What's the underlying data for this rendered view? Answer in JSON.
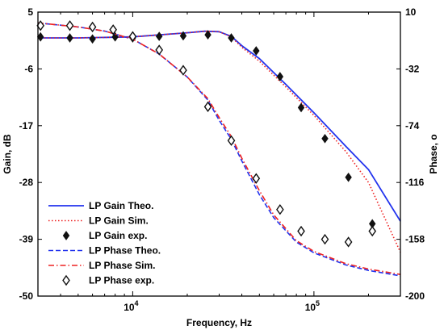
{
  "chart_data": {
    "type": "line",
    "xlabel": "Frequency, Hz",
    "ylabel_left": "Gain, dB",
    "ylabel_right": "Phase, o",
    "x_scale": "log",
    "xlim": [
      3000,
      300000
    ],
    "ylim_left": [
      -50,
      5
    ],
    "ylim_right": [
      -200,
      10
    ],
    "left_ticks": [
      "5",
      "-6",
      "-17",
      "-28",
      "-39",
      "-50"
    ],
    "right_ticks": [
      "10",
      "-32",
      "-74",
      "-116",
      "-158",
      "-200"
    ],
    "x_tick_labels": [
      {
        "base": "10",
        "exp": "4",
        "value": 10000
      },
      {
        "base": "10",
        "exp": "5",
        "value": 100000
      }
    ],
    "grid": false,
    "legend_position": "bottom-left",
    "series": [
      {
        "name": "LP Gain Theo.",
        "axis": "left",
        "style": "solid",
        "color": "#2233ee",
        "x": [
          3000,
          5000,
          10000,
          20000,
          25000,
          30000,
          35000,
          40000,
          50000,
          70000,
          100000,
          150000,
          200000,
          300000
        ],
        "y": [
          0,
          0,
          0.2,
          1,
          1.3,
          1.2,
          0.3,
          -1.5,
          -4,
          -9,
          -14.5,
          -21,
          -25.5,
          -35.5
        ]
      },
      {
        "name": "LP Gain Sim.",
        "axis": "left",
        "style": "dotted",
        "color": "#ee2222",
        "x": [
          3000,
          5000,
          10000,
          20000,
          25000,
          30000,
          35000,
          40000,
          50000,
          70000,
          100000,
          150000,
          200000,
          300000
        ],
        "y": [
          0,
          0,
          0.2,
          1,
          1.3,
          1.2,
          0.2,
          -1.8,
          -4.5,
          -9.5,
          -15,
          -22,
          -28,
          -41.5
        ]
      },
      {
        "name": "LP Gain exp.",
        "axis": "left",
        "style": "marker-filled-diamond",
        "color": "#111111",
        "x": [
          3100,
          4500,
          6000,
          8000,
          10000,
          14000,
          19000,
          26000,
          35000,
          48000,
          65000,
          85000,
          115000,
          155000,
          210000
        ],
        "y": [
          0.2,
          0,
          -0.2,
          0.2,
          0,
          0.3,
          0.4,
          0.6,
          0,
          -2.5,
          -7.5,
          -13.5,
          -19.5,
          -27,
          -36
        ]
      },
      {
        "name": "LP Phase Theo.",
        "axis": "right",
        "style": "dashed",
        "color": "#2233ee",
        "x": [
          3000,
          5000,
          7000,
          10000,
          14000,
          20000,
          26000,
          30000,
          35000,
          40000,
          50000,
          60000,
          80000,
          100000,
          150000,
          200000,
          300000
        ],
        "y": [
          2,
          -1,
          -4,
          -10,
          -21,
          -38,
          -55,
          -70,
          -84,
          -100,
          -125,
          -142,
          -160,
          -168,
          -177,
          -181,
          -185
        ]
      },
      {
        "name": "LP Phase Sim.",
        "axis": "right",
        "style": "dash-dot",
        "color": "#ee2222",
        "x": [
          3000,
          5000,
          7000,
          10000,
          14000,
          20000,
          26000,
          30000,
          35000,
          40000,
          50000,
          60000,
          80000,
          100000,
          150000,
          200000,
          300000
        ],
        "y": [
          2,
          -1,
          -4,
          -10,
          -21,
          -38,
          -54,
          -68,
          -82,
          -98,
          -122,
          -140,
          -159,
          -167,
          -176,
          -180,
          -184
        ]
      },
      {
        "name": "LP Phase exp.",
        "axis": "right",
        "style": "marker-open-diamond",
        "color": "#111111",
        "x": [
          3100,
          4500,
          6000,
          7800,
          10000,
          14000,
          19000,
          26000,
          35000,
          48000,
          65000,
          85000,
          115000,
          155000,
          210000
        ],
        "y": [
          0,
          0,
          -1,
          -3,
          -8,
          -18,
          -33,
          -60,
          -85,
          -113,
          -136,
          -152,
          -158,
          -160,
          -152
        ]
      }
    ]
  }
}
